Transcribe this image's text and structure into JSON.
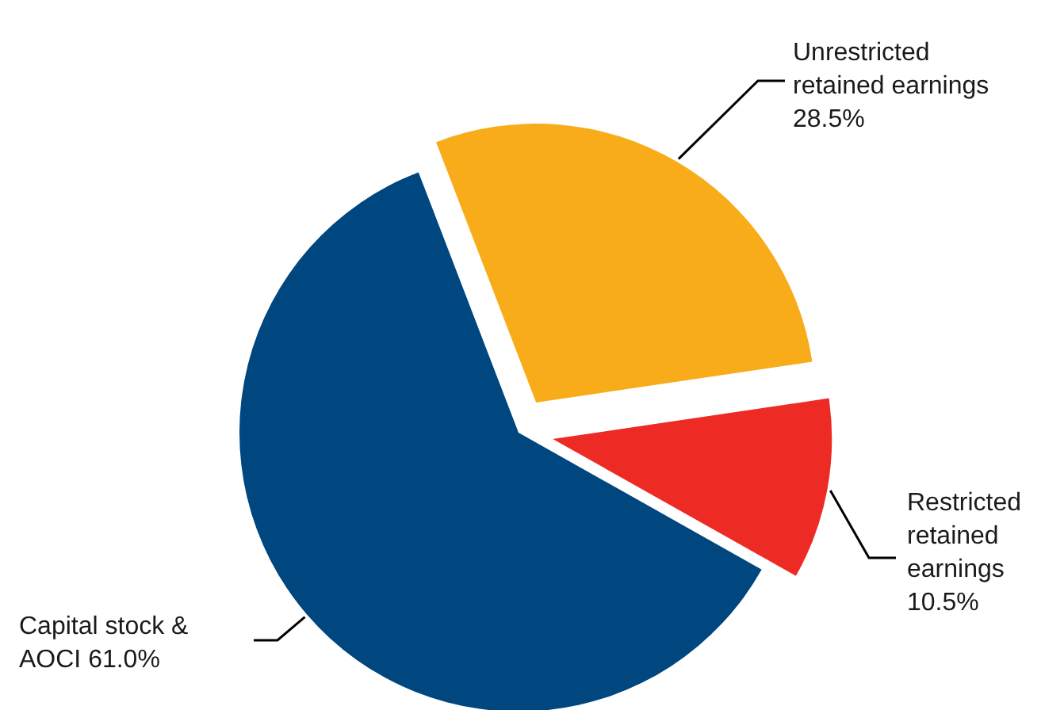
{
  "chart_data": {
    "type": "pie",
    "categories": [
      "Unrestricted retained earnings",
      "Restricted retained earnings",
      "Capital stock & AOCI"
    ],
    "values": [
      28.5,
      10.5,
      61.0
    ],
    "colors": [
      "#f8ac1a",
      "#ee2a24",
      "#00467f"
    ],
    "value_labels": [
      "28.5%",
      "10.5%",
      "61.0%"
    ],
    "legend": false
  }
}
